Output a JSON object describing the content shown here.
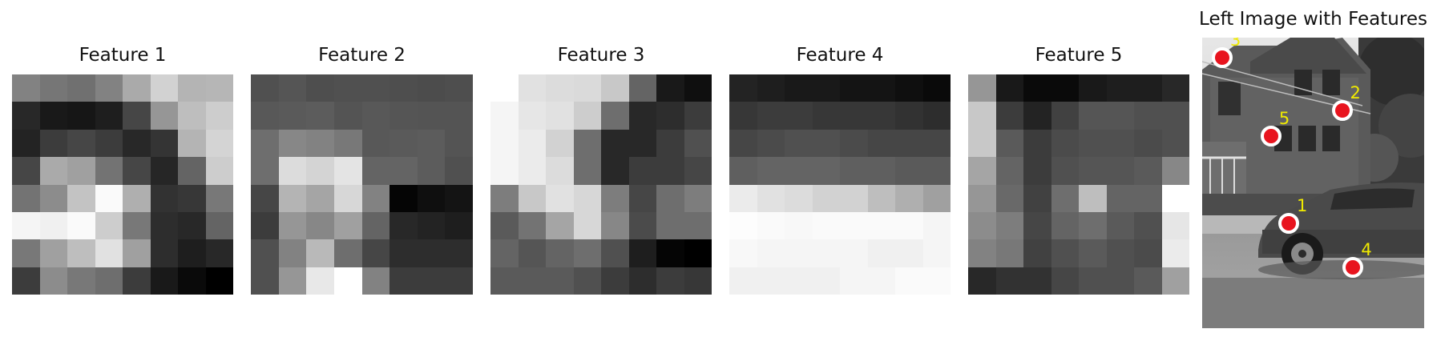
{
  "panels": [
    {
      "title": "Feature 1",
      "grid": [
        [
          130,
          118,
          112,
          130,
          170,
          210,
          180,
          182
        ],
        [
          40,
          25,
          22,
          30,
          70,
          150,
          190,
          205
        ],
        [
          35,
          60,
          70,
          60,
          40,
          52,
          180,
          212
        ],
        [
          70,
          170,
          160,
          115,
          70,
          38,
          100,
          205
        ],
        [
          115,
          140,
          195,
          250,
          175,
          50,
          55,
          120
        ],
        [
          245,
          240,
          250,
          205,
          120,
          45,
          40,
          100
        ],
        [
          120,
          160,
          190,
          225,
          160,
          45,
          30,
          40
        ],
        [
          60,
          140,
          120,
          110,
          60,
          25,
          10,
          0
        ]
      ]
    },
    {
      "title": "Feature 2",
      "grid": [
        [
          80,
          85,
          78,
          80,
          80,
          78,
          76,
          78
        ],
        [
          88,
          90,
          92,
          84,
          88,
          85,
          84,
          84
        ],
        [
          110,
          135,
          130,
          120,
          88,
          90,
          92,
          84
        ],
        [
          110,
          220,
          212,
          228,
          100,
          100,
          92,
          80
        ],
        [
          70,
          180,
          165,
          215,
          130,
          5,
          15,
          20
        ],
        [
          60,
          150,
          135,
          160,
          100,
          40,
          35,
          30
        ],
        [
          80,
          130,
          185,
          110,
          70,
          45,
          45,
          45
        ],
        [
          80,
          150,
          232,
          255,
          130,
          60,
          60,
          60
        ]
      ]
    },
    {
      "title": "Feature 3",
      "grid": [
        [
          255,
          225,
          220,
          218,
          200,
          100,
          25,
          15
        ],
        [
          245,
          230,
          225,
          205,
          110,
          40,
          45,
          60
        ],
        [
          245,
          235,
          210,
          110,
          40,
          40,
          60,
          80
        ],
        [
          245,
          235,
          220,
          110,
          40,
          60,
          60,
          70
        ],
        [
          125,
          200,
          225,
          215,
          125,
          70,
          110,
          125
        ],
        [
          90,
          115,
          165,
          215,
          135,
          75,
          110,
          110
        ],
        [
          100,
          85,
          100,
          110,
          80,
          30,
          5,
          0
        ],
        [
          90,
          90,
          90,
          80,
          60,
          45,
          60,
          55
        ]
      ]
    },
    {
      "title": "Feature 4",
      "grid": [
        [
          35,
          30,
          25,
          25,
          20,
          20,
          15,
          10
        ],
        [
          55,
          60,
          60,
          55,
          55,
          55,
          50,
          45
        ],
        [
          70,
          75,
          80,
          80,
          75,
          70,
          70,
          70
        ],
        [
          95,
          100,
          100,
          100,
          95,
          95,
          90,
          90
        ],
        [
          235,
          225,
          220,
          210,
          210,
          190,
          175,
          160
        ],
        [
          253,
          250,
          248,
          250,
          250,
          250,
          250,
          245
        ],
        [
          248,
          245,
          245,
          245,
          245,
          240,
          240,
          245
        ],
        [
          240,
          240,
          240,
          240,
          245,
          245,
          250,
          250
        ]
      ]
    },
    {
      "title": "Feature 5",
      "grid": [
        [
          150,
          25,
          10,
          10,
          25,
          30,
          30,
          40
        ],
        [
          200,
          60,
          35,
          65,
          85,
          85,
          80,
          80
        ],
        [
          200,
          90,
          60,
          75,
          80,
          80,
          75,
          80
        ],
        [
          165,
          100,
          60,
          80,
          85,
          85,
          90,
          135
        ],
        [
          150,
          105,
          65,
          110,
          190,
          100,
          100,
          255
        ],
        [
          140,
          125,
          70,
          100,
          110,
          90,
          80,
          230
        ],
        [
          130,
          120,
          65,
          80,
          90,
          80,
          75,
          235
        ],
        [
          40,
          50,
          50,
          70,
          80,
          80,
          90,
          160
        ]
      ]
    }
  ],
  "photo": {
    "title": "Left Image with Features",
    "markers": [
      {
        "label": "1",
        "x": 0.39,
        "y": 0.64
      },
      {
        "label": "2",
        "x": 0.63,
        "y": 0.25
      },
      {
        "label": "3",
        "x": 0.09,
        "y": 0.07
      },
      {
        "label": "4",
        "x": 0.68,
        "y": 0.79
      },
      {
        "label": "5",
        "x": 0.31,
        "y": 0.34
      }
    ]
  }
}
